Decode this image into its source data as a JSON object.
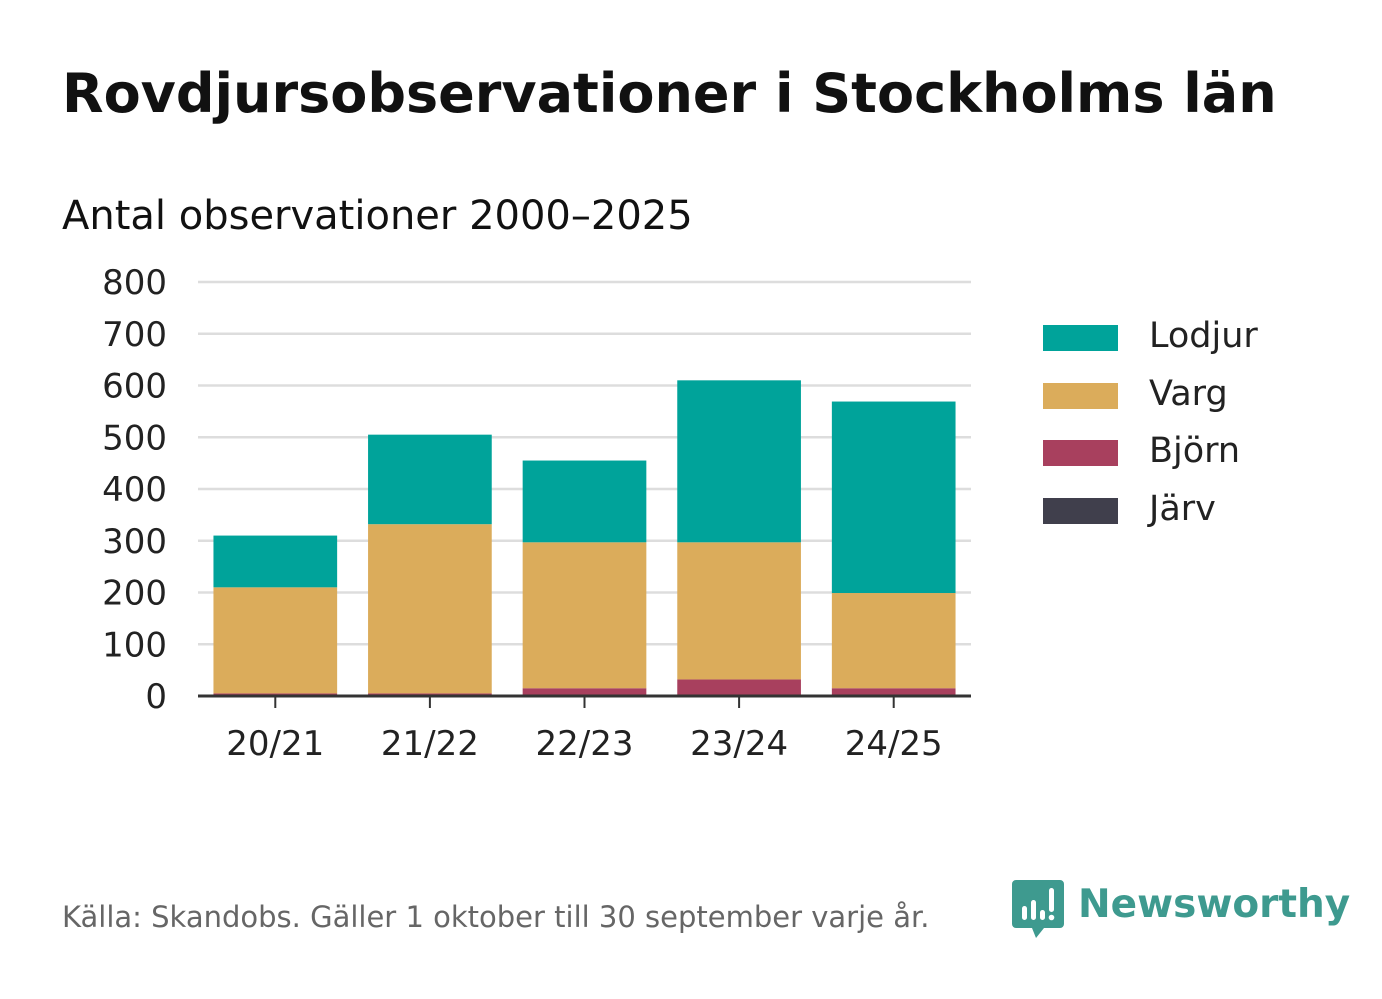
{
  "title": "Rovdjursobservationer i Stockholms län",
  "subtitle": "Antal observationer 2000–2025",
  "footer": "Källa: Skandobs. Gäller 1 oktober till 30 september varje år.",
  "brand": "Newsworthy",
  "colors": {
    "Lodjur": "#00a39a",
    "Varg": "#dbac5b",
    "Björn": "#a8405e",
    "Järv": "#403f4c",
    "brand": "#3e9a8f"
  },
  "chart_data": {
    "type": "bar",
    "stacked": true,
    "categories": [
      "20/21",
      "21/22",
      "22/23",
      "23/24",
      "24/25"
    ],
    "series": [
      {
        "name": "Järv",
        "values": [
          0,
          0,
          0,
          0,
          0
        ]
      },
      {
        "name": "Björn",
        "values": [
          5,
          5,
          15,
          32,
          15
        ]
      },
      {
        "name": "Varg",
        "values": [
          205,
          327,
          282,
          265,
          184
        ]
      },
      {
        "name": "Lodjur",
        "values": [
          100,
          173,
          158,
          313,
          370
        ]
      }
    ],
    "yticks": [
      "0",
      "100",
      "200",
      "300",
      "400",
      "500",
      "600",
      "700",
      "800"
    ],
    "ylim": [
      0,
      800
    ],
    "xlabel": "",
    "ylabel": "",
    "grid": true,
    "legend": [
      "Lodjur",
      "Varg",
      "Björn",
      "Järv"
    ],
    "legend_position": "right"
  }
}
